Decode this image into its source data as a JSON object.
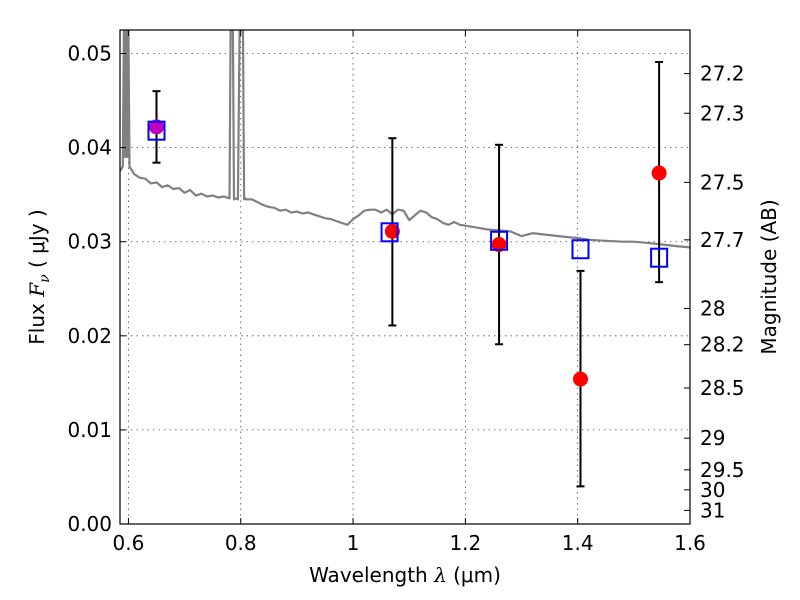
{
  "chart_data": {
    "type": "scatter",
    "xlabel": {
      "prefix": "Wavelength  ",
      "symbol": "λ",
      "unit": " (μm)"
    },
    "ylabel": {
      "prefix": "Flux  ",
      "symbol": "F",
      "subscript": "ν",
      "unit": "  ( μJy )"
    },
    "ylabel_right": "Magnitude (AB)",
    "xlim": [
      0.585,
      1.6
    ],
    "ylim": [
      0.0,
      0.0525
    ],
    "x_ticks": [
      {
        "value": 0.6,
        "label": "0.6"
      },
      {
        "value": 0.8,
        "label": "0.8"
      },
      {
        "value": 1.0,
        "label": "1"
      },
      {
        "value": 1.2,
        "label": "1.2"
      },
      {
        "value": 1.4,
        "label": "1.4"
      },
      {
        "value": 1.6,
        "label": "1.6"
      }
    ],
    "y_ticks": [
      {
        "value": 0.0,
        "label": "0.00"
      },
      {
        "value": 0.01,
        "label": "0.01"
      },
      {
        "value": 0.02,
        "label": "0.02"
      },
      {
        "value": 0.03,
        "label": "0.03"
      },
      {
        "value": 0.04,
        "label": "0.04"
      },
      {
        "value": 0.05,
        "label": "0.05"
      }
    ],
    "right_ticks": [
      {
        "mag": 27.2,
        "label": "27.2"
      },
      {
        "mag": 27.3,
        "label": "27.3"
      },
      {
        "mag": 27.5,
        "label": "27.5"
      },
      {
        "mag": 27.7,
        "label": "27.7"
      },
      {
        "mag": 28.0,
        "label": "28"
      },
      {
        "mag": 28.2,
        "label": "28.2"
      },
      {
        "mag": 28.5,
        "label": "28.5"
      },
      {
        "mag": 29.0,
        "label": "29"
      },
      {
        "mag": 29.5,
        "label": "29.5"
      },
      {
        "mag": 30.0,
        "label": "30"
      },
      {
        "mag": 31.0,
        "label": "31"
      }
    ],
    "grid": true,
    "series": [
      {
        "type": "line",
        "color": "#808080",
        "x": [
          0.585,
          0.59,
          0.592,
          0.594,
          0.596,
          0.598,
          0.6,
          0.602,
          0.61,
          0.62,
          0.63,
          0.64,
          0.65,
          0.66,
          0.67,
          0.68,
          0.69,
          0.7,
          0.71,
          0.72,
          0.73,
          0.74,
          0.75,
          0.76,
          0.77,
          0.78,
          0.782,
          0.784,
          0.786,
          0.788,
          0.79,
          0.795,
          0.798,
          0.8,
          0.802,
          0.804,
          0.806,
          0.808,
          0.81,
          0.82,
          0.83,
          0.84,
          0.85,
          0.86,
          0.87,
          0.88,
          0.89,
          0.9,
          0.91,
          0.92,
          0.93,
          0.94,
          0.95,
          0.96,
          0.97,
          0.98,
          0.99,
          1.0,
          1.01,
          1.02,
          1.03,
          1.04,
          1.05,
          1.06,
          1.07,
          1.08,
          1.09,
          1.1,
          1.11,
          1.12,
          1.13,
          1.14,
          1.15,
          1.16,
          1.17,
          1.18,
          1.19,
          1.2,
          1.22,
          1.24,
          1.26,
          1.28,
          1.3,
          1.32,
          1.35,
          1.38,
          1.4,
          1.42,
          1.45,
          1.48,
          1.5,
          1.52,
          1.55,
          1.58,
          1.6
        ],
        "y": [
          0.0375,
          0.038,
          0.0525,
          0.039,
          0.0525,
          0.039,
          0.0525,
          0.038,
          0.0372,
          0.0368,
          0.0367,
          0.0362,
          0.0363,
          0.0358,
          0.036,
          0.0356,
          0.0357,
          0.0352,
          0.0355,
          0.0349,
          0.0351,
          0.0348,
          0.0349,
          0.0347,
          0.0348,
          0.0346,
          0.0525,
          0.0525,
          0.0525,
          0.0345,
          0.0346,
          0.0345,
          0.0525,
          0.0525,
          0.0525,
          0.0525,
          0.0345,
          0.0346,
          0.0345,
          0.0345,
          0.0342,
          0.0339,
          0.0337,
          0.0336,
          0.0333,
          0.0334,
          0.0331,
          0.0332,
          0.033,
          0.0331,
          0.0329,
          0.0327,
          0.0325,
          0.0324,
          0.0322,
          0.032,
          0.0318,
          0.0324,
          0.0328,
          0.0333,
          0.0334,
          0.0334,
          0.0331,
          0.0334,
          0.0329,
          0.0334,
          0.0333,
          0.0323,
          0.0328,
          0.0333,
          0.0331,
          0.0326,
          0.0324,
          0.032,
          0.0318,
          0.0321,
          0.0318,
          0.0317,
          0.0315,
          0.0313,
          0.0312,
          0.0311,
          0.0306,
          0.0309,
          0.0307,
          0.0305,
          0.0304,
          0.0302,
          0.0301,
          0.03,
          0.03,
          0.0299,
          0.0297,
          0.0295,
          0.0294
        ]
      },
      {
        "type": "errorbar",
        "color": "#000000",
        "x": [
          0.65,
          1.07,
          1.26,
          1.405,
          1.545
        ],
        "y": [
          0.0422,
          0.0311,
          0.0297,
          0.0154,
          0.0373
        ],
        "yerr_low": [
          0.0038,
          0.01,
          0.0106,
          0.0114,
          0.0116
        ],
        "yerr_high": [
          0.0038,
          0.0099,
          0.0106,
          0.0115,
          0.0118
        ]
      },
      {
        "type": "scatter",
        "marker": "circle",
        "color": "#ff0000",
        "x": [
          1.07,
          1.26,
          1.405,
          1.545
        ],
        "y": [
          0.0311,
          0.0297,
          0.0154,
          0.0373
        ]
      },
      {
        "type": "scatter",
        "marker": "circle",
        "color": "#bf00bf",
        "x": [
          0.65
        ],
        "y": [
          0.0422
        ]
      },
      {
        "type": "scatter",
        "marker": "open-square",
        "color": "#0000ff",
        "x": [
          0.65,
          1.065,
          1.26,
          1.405,
          1.545
        ],
        "y": [
          0.0418,
          0.031,
          0.0301,
          0.0292,
          0.0283
        ]
      }
    ]
  }
}
